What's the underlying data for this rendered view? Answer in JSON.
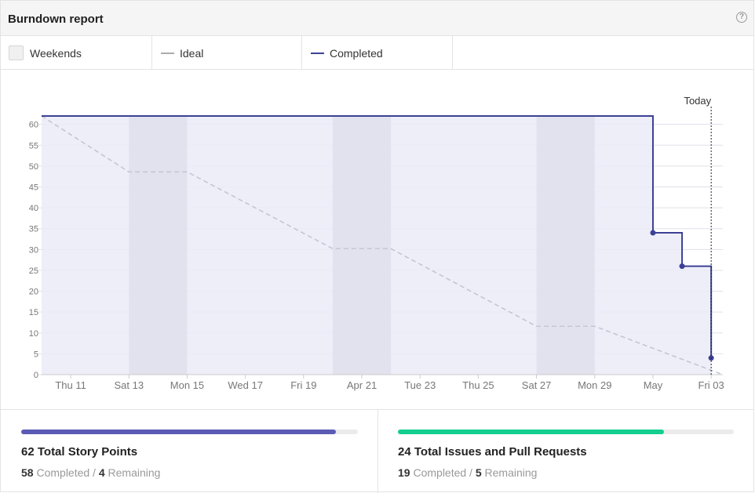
{
  "header": {
    "title": "Burndown report",
    "help_icon": "question-circle-icon"
  },
  "legend": {
    "weekends": "Weekends",
    "ideal": "Ideal",
    "completed": "Completed"
  },
  "colors": {
    "completed_line": "#3c4195",
    "completed_area": "#ebebf8",
    "weekend_band": "#dfdfec",
    "ideal_line": "#c6c6d2",
    "grid": "#e0e0e8",
    "story_bar": "#5b5bb5",
    "issues_bar": "#12cf8e"
  },
  "chart_data": {
    "type": "line",
    "title": "",
    "xlabel": "",
    "ylabel": "",
    "ylim": [
      0,
      62
    ],
    "y_ticks": [
      0,
      5,
      10,
      15,
      20,
      25,
      30,
      35,
      40,
      45,
      50,
      55,
      60
    ],
    "x_ticks": [
      "Thu 11",
      "Sat 13",
      "Mon 15",
      "Wed 17",
      "Fri 19",
      "Apr 21",
      "Tue 23",
      "Thu 25",
      "Sat 27",
      "Mon 29",
      "May",
      "Fri 03"
    ],
    "x_tick_days": [
      1,
      3,
      5,
      7,
      9,
      11,
      13,
      15,
      17,
      19,
      21,
      23
    ],
    "x_range_days": [
      0,
      23.4
    ],
    "weekends": [
      [
        3,
        5
      ],
      [
        10,
        12
      ],
      [
        17,
        19
      ]
    ],
    "today_label": "Today",
    "today_day": 23,
    "series": [
      {
        "name": "Ideal",
        "style": "dashed",
        "points": [
          [
            0,
            62
          ],
          [
            3,
            48.6
          ],
          [
            5,
            48.6
          ],
          [
            10,
            30.2
          ],
          [
            12,
            30.2
          ],
          [
            17,
            11.6
          ],
          [
            19,
            11.6
          ],
          [
            23.4,
            0
          ]
        ]
      },
      {
        "name": "Completed",
        "style": "step",
        "points": [
          [
            0,
            62
          ],
          [
            21,
            62
          ],
          [
            21,
            34
          ],
          [
            22,
            34
          ],
          [
            22,
            26
          ],
          [
            23,
            26
          ],
          [
            23,
            4
          ]
        ],
        "markers": [
          [
            21,
            34
          ],
          [
            22,
            26
          ],
          [
            23,
            4
          ]
        ]
      }
    ]
  },
  "stats": {
    "story_points": {
      "total_text": "62 Total Story Points",
      "completed_value": "58",
      "completed_label": "Completed /",
      "remaining_value": "4",
      "remaining_label": "Remaining",
      "progress": 0.935
    },
    "issues": {
      "total_text": "24 Total Issues and Pull Requests",
      "completed_value": "19",
      "completed_label": "Completed /",
      "remaining_value": "5",
      "remaining_label": "Remaining",
      "progress": 0.792
    }
  }
}
